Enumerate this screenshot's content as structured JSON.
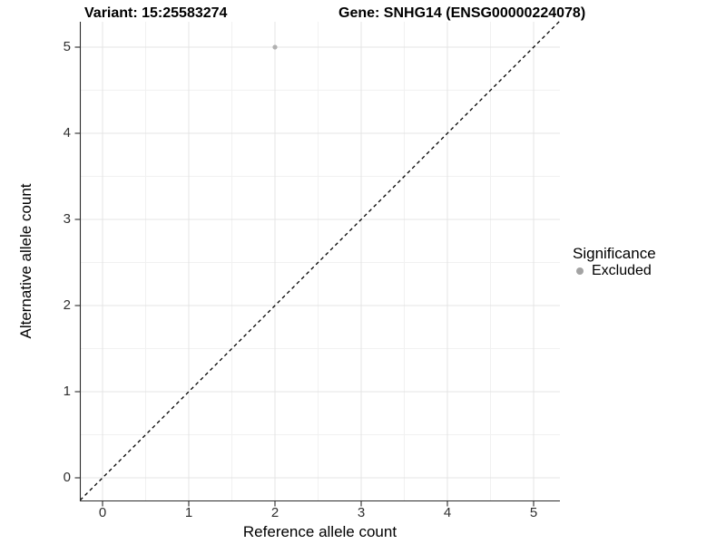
{
  "figure": {
    "title_left": "Variant: 15:25583274",
    "title_right": "Gene: SNHG14 (ENSG00000224078)",
    "background": "#ffffff"
  },
  "chart_data": {
    "type": "scatter",
    "title_left": "Variant: 15:25583274",
    "title_right": "Gene: SNHG14 (ENSG00000224078)",
    "xlabel": "Reference allele count",
    "ylabel": "Alternative allele count",
    "x_ticks": [
      0,
      1,
      2,
      3,
      4,
      5
    ],
    "y_ticks": [
      0,
      1,
      2,
      3,
      4,
      5
    ],
    "xlim": [
      -0.26,
      5.31
    ],
    "ylim": [
      -0.27,
      5.3
    ],
    "grid": {
      "major": true,
      "minor": true,
      "minor_step": 0.5,
      "major_color": "#e4e4e4",
      "minor_color": "#f1f1f1"
    },
    "axis_line_color": "#2a2a2a",
    "identity_line": {
      "style": "dashed",
      "color": "#000000",
      "slope": 1,
      "intercept": 0
    },
    "series": [
      {
        "name": "Excluded",
        "color": "#b0b0b0",
        "points": [
          [
            2,
            5
          ]
        ]
      }
    ],
    "legend": {
      "title": "Significance",
      "position": "right",
      "items": [
        {
          "label": "Excluded",
          "color": "#a3a3a3"
        }
      ]
    }
  }
}
